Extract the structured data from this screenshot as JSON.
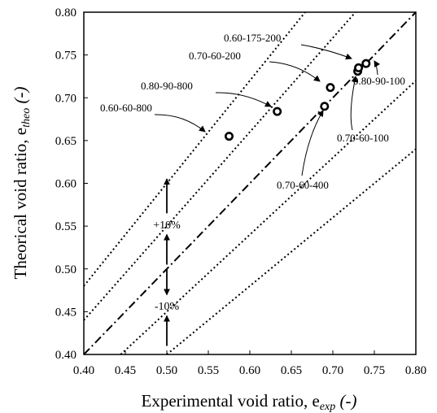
{
  "chart_data": {
    "type": "scatter",
    "xlabel": "Experimental void ratio, e",
    "xlabel_sub": "exp",
    "xlabel_suffix": " (-)",
    "ylabel": "Theorical void ratio, e",
    "ylabel_sub": "theo",
    "ylabel_suffix": " (-)",
    "xlim": [
      0.4,
      0.8
    ],
    "ylim": [
      0.4,
      0.8
    ],
    "x_ticks": [
      "0.40",
      "0.45",
      "0.50",
      "0.55",
      "0.60",
      "0.65",
      "0.70",
      "0.75",
      "0.80"
    ],
    "y_ticks": [
      "0.40",
      "0.45",
      "0.50",
      "0.55",
      "0.60",
      "0.65",
      "0.70",
      "0.75",
      "0.80"
    ],
    "grid": false,
    "reference_lines": [
      {
        "kind": "identity",
        "style": "dash-dot",
        "slope": 1.0
      },
      {
        "kind": "+10%",
        "style": "dotted",
        "slope": 1.1
      },
      {
        "kind": "-10%",
        "style": "dotted",
        "slope": 0.9
      },
      {
        "kind": "+20%",
        "style": "dotted",
        "slope": 1.2
      },
      {
        "kind": "-20%",
        "style": "dotted",
        "slope": 0.8
      }
    ],
    "band_labels": [
      "+10%",
      "-10%"
    ],
    "points": [
      {
        "x": 0.575,
        "y": 0.655,
        "label": "0.60-60-800"
      },
      {
        "x": 0.633,
        "y": 0.684,
        "label": "0.80-90-800"
      },
      {
        "x": 0.69,
        "y": 0.69,
        "label": "0.70-60-400"
      },
      {
        "x": 0.697,
        "y": 0.712,
        "label": "0.70-60-200"
      },
      {
        "x": 0.73,
        "y": 0.731,
        "label": "0.70-60-100"
      },
      {
        "x": 0.731,
        "y": 0.735,
        "label": "0.60-175-200"
      },
      {
        "x": 0.74,
        "y": 0.74,
        "label": "0.80-90-100"
      }
    ]
  }
}
